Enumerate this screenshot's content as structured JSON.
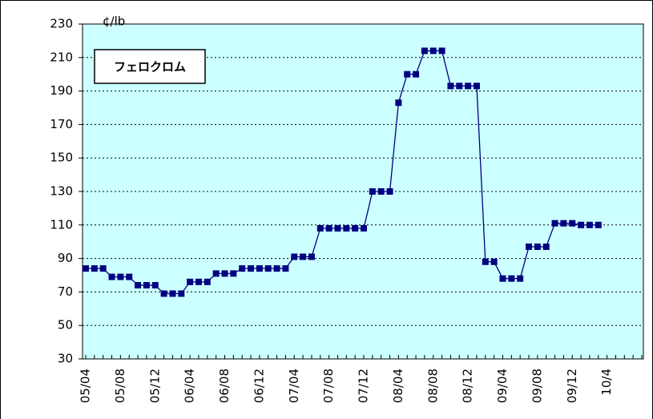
{
  "chart_data": {
    "type": "line",
    "title": "フェロクロム",
    "ylabel": "¢/lb",
    "categories": [
      "05/04",
      null,
      null,
      null,
      "05/08",
      null,
      null,
      null,
      "05/12",
      null,
      null,
      null,
      "06/04",
      null,
      null,
      null,
      "06/08",
      null,
      null,
      null,
      "06/12",
      null,
      null,
      null,
      "07/04",
      null,
      null,
      null,
      "07/08",
      null,
      null,
      null,
      "07/12",
      null,
      null,
      null,
      "08/04",
      null,
      null,
      null,
      "08/08",
      null,
      null,
      null,
      "08/12",
      null,
      null,
      null,
      "09/04",
      null,
      null,
      null,
      "09/08",
      null,
      null,
      null,
      "09/12",
      null,
      null,
      null,
      "10/4",
      null,
      null,
      null,
      null
    ],
    "values": [
      84,
      84,
      84,
      79,
      79,
      79,
      74,
      74,
      74,
      69,
      69,
      69,
      76,
      76,
      76,
      81,
      81,
      81,
      84,
      84,
      84,
      84,
      84,
      84,
      91,
      91,
      91,
      108,
      108,
      108,
      108,
      108,
      108,
      130,
      130,
      130,
      183,
      200,
      200,
      214,
      214,
      214,
      193,
      193,
      193,
      193,
      88,
      88,
      78,
      78,
      78,
      97,
      97,
      97,
      111,
      111,
      111,
      110,
      110,
      110,
      null,
      null,
      null,
      null,
      null
    ],
    "color": "#000080",
    "plot_background": "#ccffff",
    "ylim": [
      30,
      230
    ],
    "yticks": [
      30,
      50,
      70,
      90,
      110,
      130,
      150,
      170,
      190,
      210,
      230
    ],
    "grid": true
  }
}
